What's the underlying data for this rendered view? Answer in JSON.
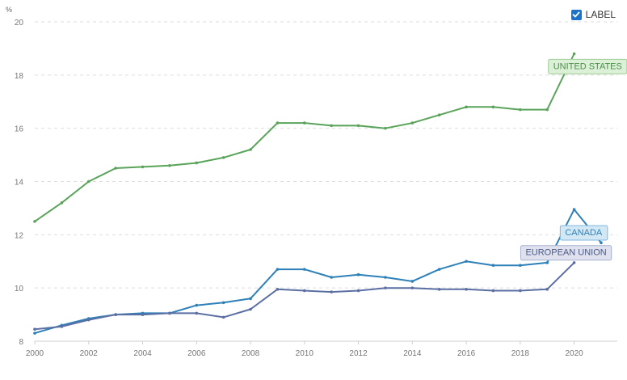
{
  "unit_label": "%",
  "label_toggle": {
    "text": "LABEL",
    "checked": true,
    "icon": "check-icon"
  },
  "chart_data": {
    "type": "line",
    "title": "",
    "xlabel": "",
    "ylabel": "%",
    "x": [
      2000,
      2001,
      2002,
      2003,
      2004,
      2005,
      2006,
      2007,
      2008,
      2009,
      2010,
      2011,
      2012,
      2013,
      2014,
      2015,
      2016,
      2017,
      2018,
      2019,
      2020,
      2021
    ],
    "xlim": [
      2000,
      2021.6
    ],
    "ylim": [
      8,
      20
    ],
    "x_ticks": [
      2000,
      2002,
      2004,
      2006,
      2008,
      2010,
      2012,
      2014,
      2016,
      2018,
      2020
    ],
    "y_ticks": [
      8,
      10,
      12,
      14,
      16,
      18,
      20
    ],
    "grid": "horizontal-dashed",
    "series": [
      {
        "name": "UNITED STATES",
        "color": "#5aa35a",
        "label_fill": "#dcefd7",
        "label_border": "#9fcf96",
        "label_text_color": "#4b8f4b",
        "label_anchor_year": 2020.5,
        "label_anchor_value": 18.35,
        "values": [
          12.5,
          13.2,
          14.0,
          14.5,
          14.55,
          14.6,
          14.7,
          14.9,
          15.2,
          16.2,
          16.2,
          16.1,
          16.1,
          16.0,
          16.2,
          16.5,
          16.8,
          16.8,
          16.7,
          16.7,
          18.8,
          null
        ]
      },
      {
        "name": "CANADA",
        "color": "#2e80b8",
        "label_fill": "#d3e8f5",
        "label_border": "#7fb7dc",
        "label_text_color": "#2e80b8",
        "label_anchor_year": 2020.35,
        "label_anchor_value": 12.1,
        "values": [
          8.3,
          8.6,
          8.85,
          9.0,
          9.05,
          9.05,
          9.35,
          9.45,
          9.6,
          10.7,
          10.7,
          10.4,
          10.5,
          10.4,
          10.25,
          10.7,
          11.0,
          10.85,
          10.85,
          10.95,
          12.95,
          11.7
        ]
      },
      {
        "name": "EUROPEAN UNION",
        "color": "#5b6fa3",
        "label_fill": "#dfe2ee",
        "label_border": "#a8b1cf",
        "label_text_color": "#4a5a86",
        "label_anchor_year": 2019.7,
        "label_anchor_value": 11.35,
        "values": [
          8.45,
          8.55,
          8.8,
          9.0,
          9.0,
          9.05,
          9.05,
          8.9,
          9.2,
          9.95,
          9.9,
          9.85,
          9.9,
          10.0,
          10.0,
          9.95,
          9.95,
          9.9,
          9.9,
          9.95,
          10.95,
          null
        ]
      }
    ]
  }
}
